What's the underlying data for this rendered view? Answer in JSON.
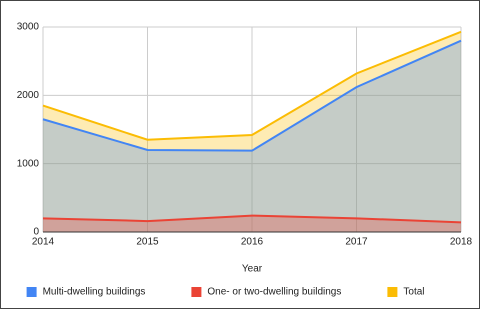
{
  "chart_data": {
    "type": "area",
    "x_label": "Year",
    "x": [
      2014,
      2015,
      2016,
      2017,
      2018
    ],
    "series": [
      {
        "name": "Multi-dwelling buildings",
        "color": "#4285f4",
        "values": [
          1650,
          1200,
          1190,
          2120,
          2800
        ]
      },
      {
        "name": "One- or two-dwelling buildings",
        "color": "#ea4335",
        "values": [
          200,
          160,
          240,
          200,
          140
        ]
      },
      {
        "name": "Total",
        "color": "#fbbc04",
        "values": [
          1850,
          1350,
          1420,
          2320,
          2930
        ]
      }
    ],
    "xlim": [
      2014,
      2018
    ],
    "xticks": [
      2014,
      2015,
      2016,
      2017,
      2018
    ],
    "ylim": [
      0,
      3000
    ],
    "yticks": [
      0,
      1000,
      2000,
      3000
    ],
    "grid": true,
    "legend": "bottom"
  }
}
